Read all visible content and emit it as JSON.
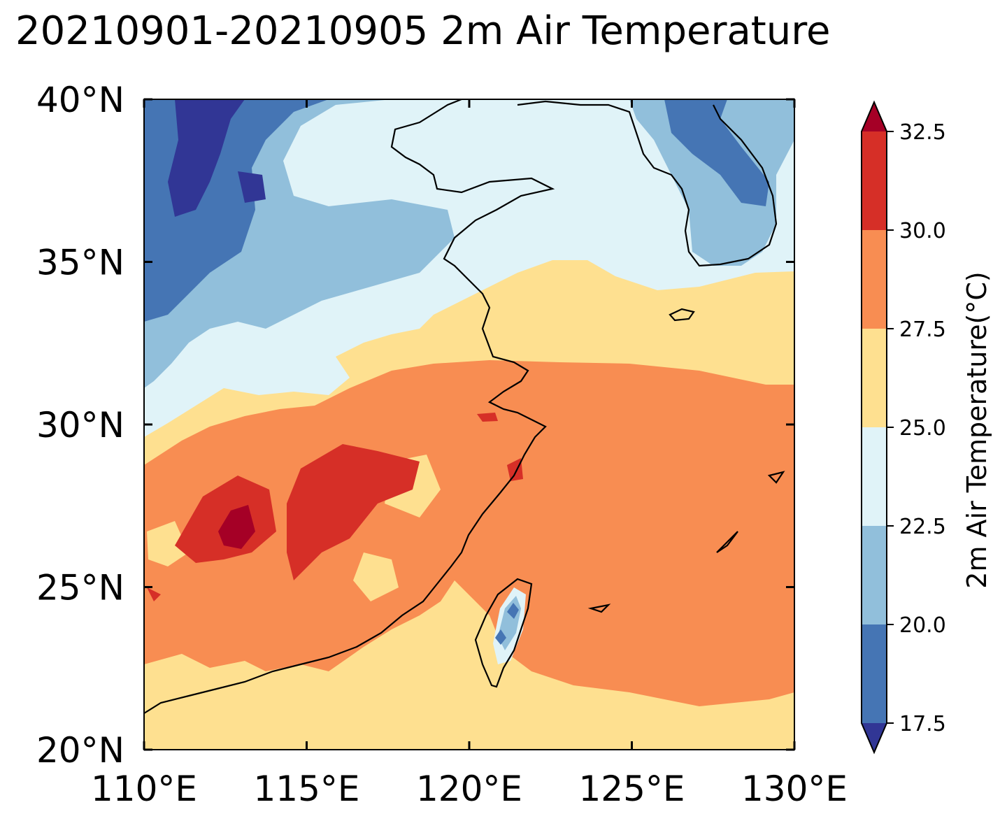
{
  "title": "20210901-20210905 2m Air Temperature",
  "map": {
    "extent": {
      "lon_min": 110,
      "lon_max": 130,
      "lat_min": 20,
      "lat_max": 40
    },
    "x_ticks": [
      {
        "value": 110,
        "label": "110°E"
      },
      {
        "value": 115,
        "label": "115°E"
      },
      {
        "value": 120,
        "label": "120°E"
      },
      {
        "value": 125,
        "label": "125°E"
      },
      {
        "value": 130,
        "label": "130°E"
      }
    ],
    "y_ticks": [
      {
        "value": 20,
        "label": "20°N"
      },
      {
        "value": 25,
        "label": "25°N"
      },
      {
        "value": 30,
        "label": "30°N"
      },
      {
        "value": 35,
        "label": "35°N"
      },
      {
        "value": 40,
        "label": "40°N"
      }
    ],
    "field": "2m air temperature, filled contours",
    "coastline_color": "#000000"
  },
  "colorbar": {
    "label": "2m Air Temperature(°C)",
    "levels": [
      17.5,
      20.0,
      22.5,
      25.0,
      27.5,
      30.0,
      32.5
    ],
    "tick_labels": [
      "17.5",
      "20.0",
      "22.5",
      "25.0",
      "27.5",
      "30.0",
      "32.5"
    ],
    "colors": [
      "#313695",
      "#4575b4",
      "#91bfdb",
      "#e0f3f8",
      "#fee090",
      "#f88d52",
      "#d62f27",
      "#a50026"
    ],
    "extend": "both"
  },
  "legend_colors": {
    "below_17_5": "#313695",
    "17_5_20": "#4575b4",
    "20_22_5": "#91bfdb",
    "22_5_25": "#e0f3f8",
    "25_27_5": "#fee090",
    "27_5_30": "#f88d52",
    "30_32_5": "#d62f27",
    "above_32_5": "#a50026"
  }
}
